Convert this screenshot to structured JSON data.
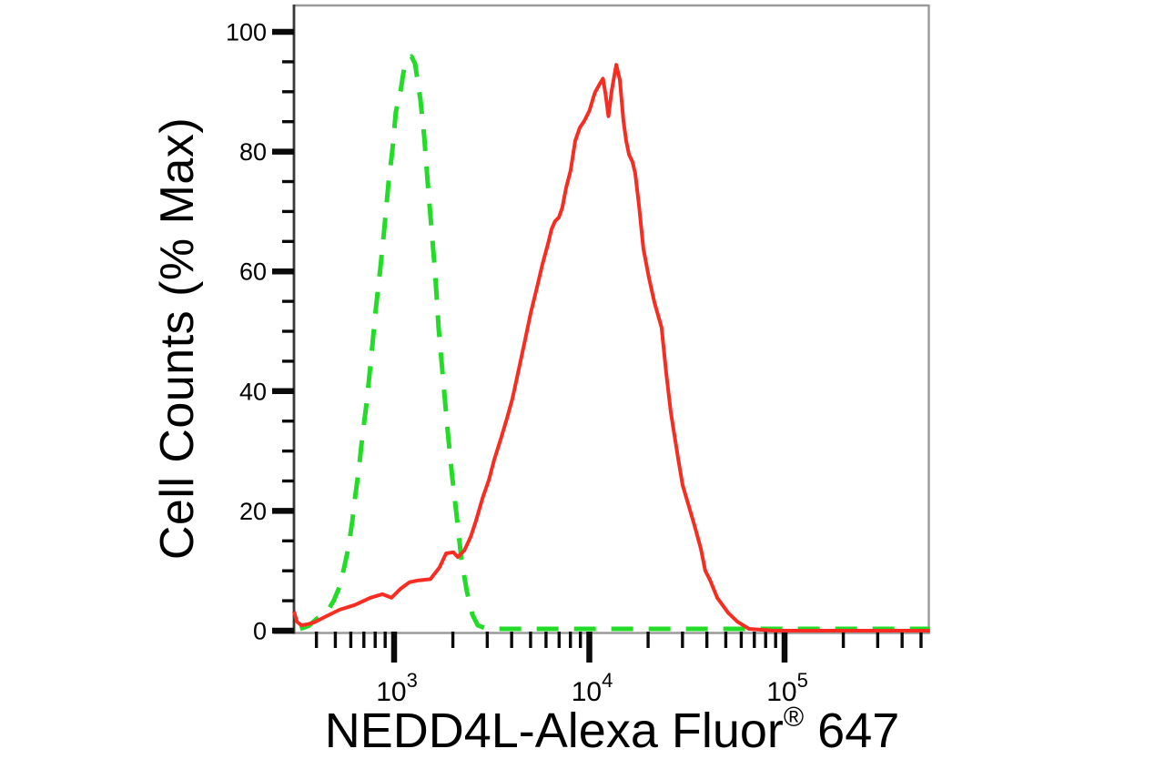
{
  "figure": {
    "background": "#ffffff",
    "frame_color": "#9a9a9a",
    "x_axis_color": "#9b9b9b",
    "y_axis_color": "#3a3a3a",
    "tick_color": "#0a0a0a",
    "text_color": "#000000"
  },
  "chart_data": {
    "type": "line",
    "title": "",
    "xlabel": "NEDD4L-Alexa Fluor® 647",
    "xlabel_parts": {
      "pre": "NEDD4L-Alexa Fluor",
      "sup": "®",
      "post": " 647"
    },
    "ylabel": "Cell Counts (% Max)",
    "x_scale": "log",
    "x_domain": [
      307,
      557000
    ],
    "ylim": [
      0,
      104.5
    ],
    "grid": false,
    "legend_position": "none",
    "x_axis": {
      "major_ticks": [
        {
          "value": 1000,
          "base": "10",
          "exponent": "3"
        },
        {
          "value": 10000,
          "base": "10",
          "exponent": "4"
        },
        {
          "value": 100000,
          "base": "10",
          "exponent": "5"
        }
      ],
      "minor_tick_values": [
        400,
        500,
        600,
        700,
        800,
        900,
        2000,
        3000,
        4000,
        5000,
        6000,
        7000,
        8000,
        9000,
        20000,
        30000,
        40000,
        50000,
        60000,
        70000,
        80000,
        90000,
        200000,
        300000,
        400000,
        500000
      ]
    },
    "y_axis": {
      "major_ticks": [
        {
          "value": 0,
          "label": "0"
        },
        {
          "value": 20,
          "label": "20"
        },
        {
          "value": 40,
          "label": "40"
        },
        {
          "value": 60,
          "label": "60"
        },
        {
          "value": 80,
          "label": "80"
        },
        {
          "value": 100,
          "label": "100"
        }
      ],
      "minor_tick_values": [
        5,
        10,
        15,
        25,
        30,
        35,
        45,
        50,
        55,
        65,
        70,
        75,
        85,
        90,
        95
      ]
    },
    "series": [
      {
        "name": "green-dashed-control",
        "color": "#22dc27",
        "line_style": "dashed",
        "line_width": 5,
        "peak": {
          "x": 1227,
          "y": 95.9
        },
        "points": [
          [
            330,
            0.3
          ],
          [
            365,
            0.8
          ],
          [
            395,
            1.8
          ],
          [
            430,
            2.8
          ],
          [
            460,
            3.5
          ],
          [
            490,
            5.0
          ],
          [
            525,
            7.3
          ],
          [
            555,
            10.6
          ],
          [
            585,
            14.1
          ],
          [
            610,
            18.2
          ],
          [
            632,
            22.5
          ],
          [
            658,
            26.6
          ],
          [
            680,
            31.0
          ],
          [
            702,
            34.7
          ],
          [
            725,
            38.4
          ],
          [
            765,
            46.0
          ],
          [
            805,
            53.6
          ],
          [
            850,
            60.5
          ],
          [
            890,
            67.0
          ],
          [
            938,
            75.0
          ],
          [
            980,
            80.2
          ],
          [
            1021,
            86.6
          ],
          [
            1079,
            90.1
          ],
          [
            1125,
            93.9
          ],
          [
            1175,
            95.4
          ],
          [
            1227,
            95.9
          ],
          [
            1280,
            94.7
          ],
          [
            1365,
            88.6
          ],
          [
            1426,
            82.5
          ],
          [
            1486,
            74.9
          ],
          [
            1553,
            67.3
          ],
          [
            1622,
            59.7
          ],
          [
            1690,
            50.6
          ],
          [
            1787,
            41.5
          ],
          [
            1884,
            33.1
          ],
          [
            1987,
            25.5
          ],
          [
            2099,
            18.7
          ],
          [
            2213,
            11.9
          ],
          [
            2360,
            6.5
          ],
          [
            2518,
            2.7
          ],
          [
            2685,
            0.9
          ],
          [
            2990,
            0.3
          ],
          [
            5000,
            0.3
          ],
          [
            15000,
            0.3
          ],
          [
            50000,
            0.3
          ],
          [
            150000,
            0.3
          ],
          [
            556000,
            0.3
          ]
        ]
      },
      {
        "name": "red-solid-stained",
        "color": "#f92c22",
        "line_style": "solid",
        "line_width": 4,
        "peak": {
          "x": 13740,
          "y": 94.5
        },
        "points": [
          [
            307,
            3.2
          ],
          [
            318,
            1.5
          ],
          [
            335,
            0.9
          ],
          [
            362,
            1.1
          ],
          [
            390,
            1.4
          ],
          [
            442,
            2.3
          ],
          [
            525,
            3.5
          ],
          [
            630,
            4.3
          ],
          [
            756,
            5.5
          ],
          [
            870,
            6.1
          ],
          [
            969,
            5.5
          ],
          [
            1079,
            7.0
          ],
          [
            1200,
            8.1
          ],
          [
            1336,
            8.4
          ],
          [
            1535,
            8.6
          ],
          [
            1710,
            10.6
          ],
          [
            1845,
            12.9
          ],
          [
            2010,
            13.1
          ],
          [
            2120,
            12.3
          ],
          [
            2290,
            13.4
          ],
          [
            2470,
            15.7
          ],
          [
            2630,
            18.4
          ],
          [
            2830,
            22.0
          ],
          [
            3060,
            25.2
          ],
          [
            3260,
            28.6
          ],
          [
            3510,
            31.9
          ],
          [
            3780,
            35.4
          ],
          [
            4040,
            38.8
          ],
          [
            4360,
            43.8
          ],
          [
            4690,
            48.6
          ],
          [
            5000,
            52.9
          ],
          [
            5400,
            57.4
          ],
          [
            5750,
            61.2
          ],
          [
            6140,
            64.6
          ],
          [
            6400,
            67.0
          ],
          [
            6680,
            68.4
          ],
          [
            6980,
            69.0
          ],
          [
            7280,
            70.7
          ],
          [
            7600,
            73.9
          ],
          [
            8020,
            76.9
          ],
          [
            8470,
            81.8
          ],
          [
            8930,
            84.0
          ],
          [
            9420,
            85.1
          ],
          [
            10000,
            86.8
          ],
          [
            10660,
            89.8
          ],
          [
            11250,
            91.2
          ],
          [
            11750,
            92.2
          ],
          [
            12130,
            89.4
          ],
          [
            12530,
            85.9
          ],
          [
            13010,
            90.1
          ],
          [
            13430,
            92.7
          ],
          [
            13740,
            94.5
          ],
          [
            14320,
            92.0
          ],
          [
            14960,
            85.1
          ],
          [
            15450,
            81.8
          ],
          [
            15960,
            79.5
          ],
          [
            16640,
            78.3
          ],
          [
            17180,
            76.4
          ],
          [
            17950,
            71.1
          ],
          [
            18920,
            63.8
          ],
          [
            20180,
            59.0
          ],
          [
            21530,
            54.9
          ],
          [
            23460,
            50.6
          ],
          [
            24770,
            43.0
          ],
          [
            26130,
            36.5
          ],
          [
            28450,
            28.9
          ],
          [
            30050,
            24.3
          ],
          [
            32380,
            20.7
          ],
          [
            34530,
            17.6
          ],
          [
            37240,
            13.7
          ],
          [
            39260,
            10.0
          ],
          [
            41460,
            8.5
          ],
          [
            45200,
            5.5
          ],
          [
            51400,
            3.0
          ],
          [
            57280,
            1.5
          ],
          [
            65770,
            0.3
          ],
          [
            88000,
            0.0
          ],
          [
            200000,
            0.0
          ],
          [
            556000,
            0.0
          ]
        ]
      }
    ]
  }
}
